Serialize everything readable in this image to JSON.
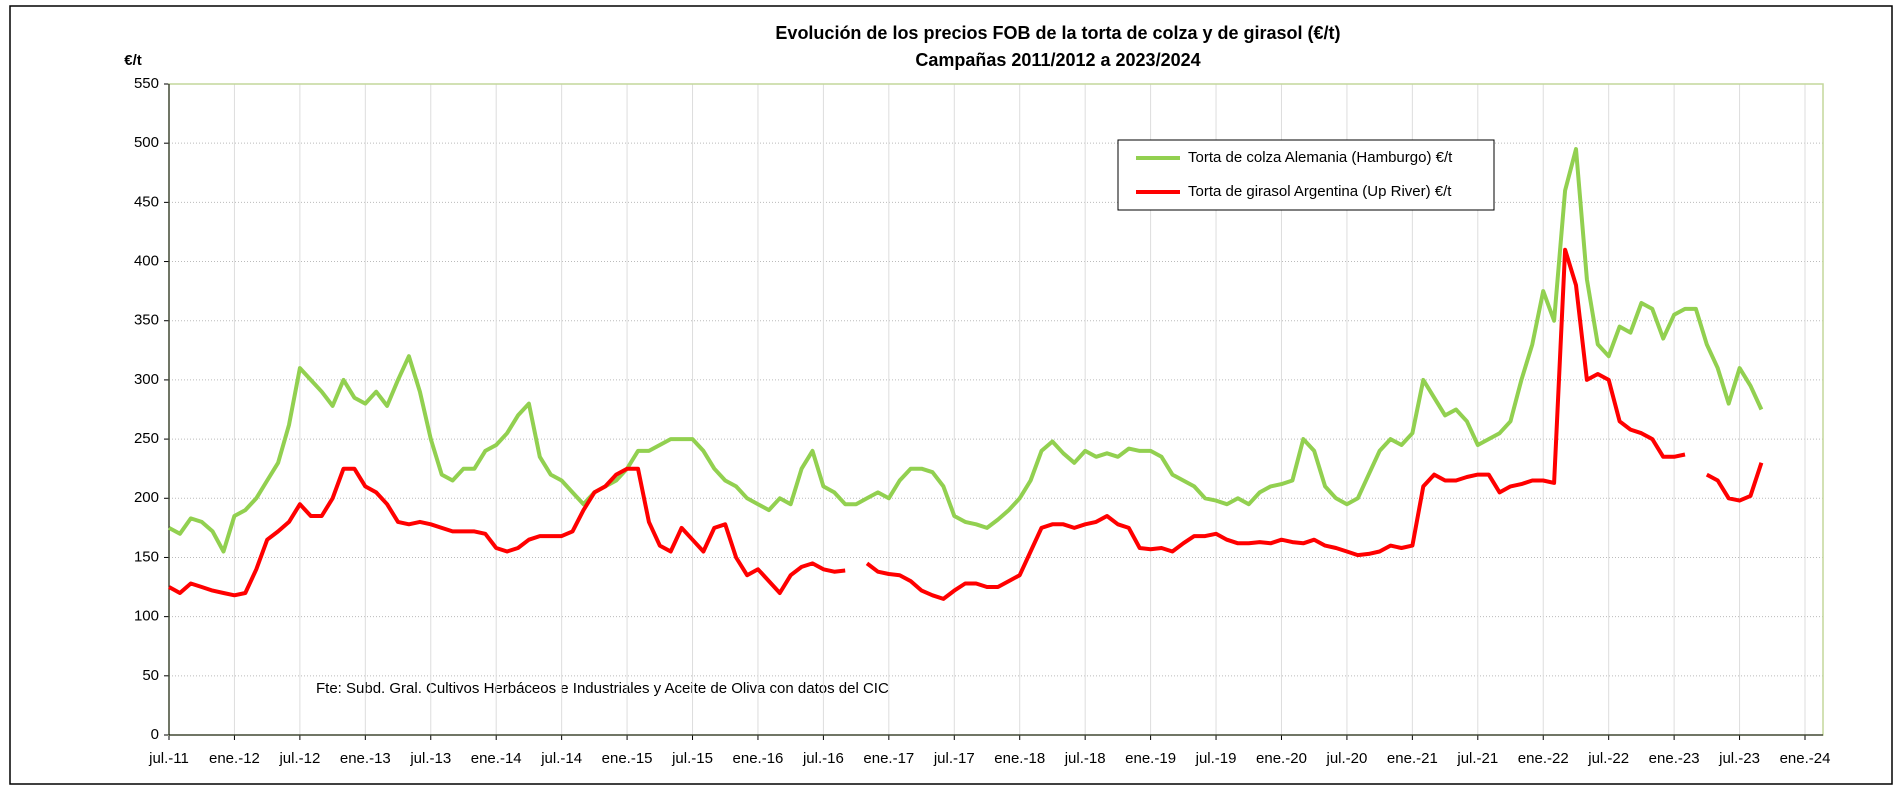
{
  "chart_data": {
    "type": "line",
    "title": "Evolución de los precios FOB de la torta de colza y de girasol (€/t)",
    "subtitle": "Campañas 2011/2012 a 2023/2024",
    "y_label": "€/t",
    "note": "Fte: Subd. Gral. Cultivos Herbáceos e Industriales y Aceite de Oliva con datos del CIC",
    "categories": [
      "jul.-11",
      null,
      null,
      null,
      null,
      null,
      "ene.-12",
      null,
      null,
      null,
      null,
      null,
      "jul.-12",
      null,
      null,
      null,
      null,
      null,
      "ene.-13",
      null,
      null,
      null,
      null,
      null,
      "jul.-13",
      null,
      null,
      null,
      null,
      null,
      "ene.-14",
      null,
      null,
      null,
      null,
      null,
      "jul.-14",
      null,
      null,
      null,
      null,
      null,
      "ene.-15",
      null,
      null,
      null,
      null,
      null,
      "jul.-15",
      null,
      null,
      null,
      null,
      null,
      "ene.-16",
      null,
      null,
      null,
      null,
      null,
      "jul.-16",
      null,
      null,
      null,
      null,
      null,
      "ene.-17",
      null,
      null,
      null,
      null,
      null,
      "jul.-17",
      null,
      null,
      null,
      null,
      null,
      "ene.-18",
      null,
      null,
      null,
      null,
      null,
      "jul.-18",
      null,
      null,
      null,
      null,
      null,
      "ene.-19",
      null,
      null,
      null,
      null,
      null,
      "jul.-19",
      null,
      null,
      null,
      null,
      null,
      "ene.-20",
      null,
      null,
      null,
      null,
      null,
      "jul.-20",
      null,
      null,
      null,
      null,
      null,
      "ene.-21",
      null,
      null,
      null,
      null,
      null,
      "jul.-21",
      null,
      null,
      null,
      null,
      null,
      "ene.-22",
      null,
      null,
      null,
      null,
      null,
      "jul.-22",
      null,
      null,
      null,
      null,
      null,
      "ene.-23",
      null,
      null,
      null,
      null,
      null,
      "jul.-23",
      null,
      null,
      null,
      null,
      null,
      "ene.-24"
    ],
    "series": [
      {
        "name": "Torta de colza Alemania (Hamburgo) €/t",
        "color": "#92d050",
        "values": [
          175,
          170,
          183,
          180,
          172,
          155,
          185,
          190,
          200,
          215,
          230,
          262,
          310,
          300,
          290,
          278,
          300,
          285,
          280,
          290,
          278,
          300,
          320,
          290,
          250,
          220,
          215,
          225,
          225,
          240,
          245,
          255,
          270,
          280,
          235,
          220,
          215,
          205,
          195,
          205,
          210,
          215,
          225,
          240,
          240,
          245,
          250,
          250,
          250,
          240,
          225,
          215,
          210,
          200,
          195,
          190,
          200,
          195,
          225,
          240,
          210,
          205,
          195,
          195,
          200,
          205,
          200,
          215,
          225,
          225,
          222,
          210,
          185,
          180,
          178,
          175,
          182,
          190,
          200,
          215,
          240,
          248,
          238,
          230,
          240,
          235,
          238,
          235,
          242,
          240,
          240,
          235,
          220,
          215,
          210,
          200,
          198,
          195,
          200,
          195,
          205,
          210,
          212,
          215,
          250,
          240,
          210,
          200,
          195,
          200,
          220,
          240,
          250,
          245,
          255,
          300,
          285,
          270,
          275,
          265,
          245,
          250,
          255,
          265,
          300,
          330,
          375,
          350,
          460,
          495,
          385,
          330,
          320,
          345,
          340,
          365,
          360,
          335,
          355,
          360,
          360,
          330,
          310,
          280,
          310,
          295,
          275,
          null,
          null,
          null,
          null
        ]
      },
      {
        "name": "Torta de girasol Argentina (Up River) €/t",
        "color": "#ff0000",
        "values": [
          125,
          120,
          128,
          125,
          122,
          120,
          118,
          120,
          140,
          165,
          172,
          180,
          195,
          185,
          185,
          200,
          225,
          225,
          210,
          205,
          195,
          180,
          178,
          180,
          178,
          175,
          172,
          172,
          172,
          170,
          158,
          155,
          158,
          165,
          168,
          168,
          168,
          172,
          190,
          205,
          210,
          220,
          225,
          225,
          180,
          160,
          155,
          175,
          165,
          155,
          175,
          178,
          150,
          135,
          140,
          130,
          120,
          135,
          142,
          145,
          140,
          138,
          139,
          null,
          145,
          138,
          136,
          135,
          130,
          122,
          118,
          115,
          122,
          128,
          128,
          125,
          125,
          130,
          135,
          155,
          175,
          178,
          178,
          175,
          178,
          180,
          185,
          178,
          175,
          158,
          157,
          158,
          155,
          162,
          168,
          168,
          170,
          165,
          162,
          162,
          163,
          162,
          165,
          163,
          162,
          165,
          160,
          158,
          155,
          152,
          153,
          155,
          160,
          158,
          160,
          210,
          220,
          215,
          215,
          218,
          220,
          220,
          205,
          210,
          212,
          215,
          215,
          213,
          410,
          380,
          300,
          305,
          300,
          265,
          258,
          255,
          250,
          235,
          235,
          237,
          null,
          220,
          215,
          200,
          198,
          202,
          230,
          null,
          null,
          null,
          null
        ]
      }
    ],
    "ylim": [
      0,
      550
    ],
    "yticks": [
      0,
      50,
      100,
      150,
      200,
      250,
      300,
      350,
      400,
      450,
      500,
      550
    ],
    "grid": true
  }
}
